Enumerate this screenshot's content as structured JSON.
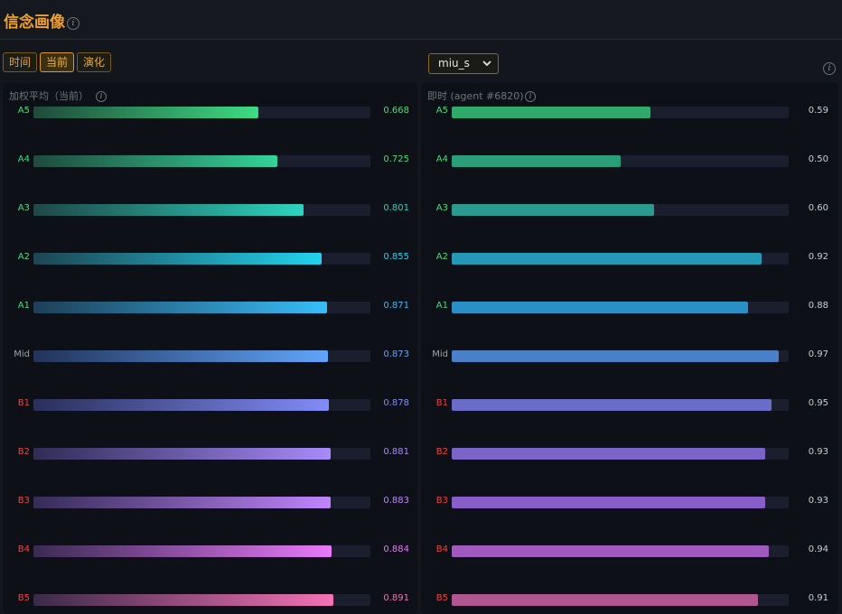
{
  "header": {
    "title": "信念画像"
  },
  "tabs": [
    {
      "label": "时间",
      "active": false
    },
    {
      "label": "当前",
      "active": true
    },
    {
      "label": "演化",
      "active": false
    }
  ],
  "agent_select": {
    "value": "miu_s"
  },
  "left_panel": {
    "title": "加权平均（当前）",
    "rows": [
      {
        "label": "A5",
        "value": 0.668,
        "value_text": "0.668",
        "label_color": "#4ade80",
        "value_color": "#4ade80",
        "grad": [
          "#1f4a3a",
          "#3ddc84"
        ]
      },
      {
        "label": "A4",
        "value": 0.725,
        "value_text": "0.725",
        "label_color": "#4ade80",
        "value_color": "#4ade80",
        "grad": [
          "#1f4a3e",
          "#34d399"
        ]
      },
      {
        "label": "A3",
        "value": 0.801,
        "value_text": "0.801",
        "label_color": "#4ade80",
        "value_color": "#2dd4bf",
        "grad": [
          "#1e4746",
          "#2dd4bf"
        ]
      },
      {
        "label": "A2",
        "value": 0.855,
        "value_text": "0.855",
        "label_color": "#4ade80",
        "value_color": "#22d3ee",
        "grad": [
          "#1e4552",
          "#22d3ee"
        ]
      },
      {
        "label": "A1",
        "value": 0.871,
        "value_text": "0.871",
        "label_color": "#4ade80",
        "value_color": "#38bdf8",
        "grad": [
          "#1e3f58",
          "#38bdf8"
        ]
      },
      {
        "label": "Mid",
        "value": 0.873,
        "value_text": "0.873",
        "label_color": "#9ca3af",
        "value_color": "#60a5fa",
        "grad": [
          "#22335a",
          "#60a5fa"
        ]
      },
      {
        "label": "B1",
        "value": 0.878,
        "value_text": "0.878",
        "label_color": "#ef4444",
        "value_color": "#818cf8",
        "grad": [
          "#2a2f58",
          "#818cf8"
        ]
      },
      {
        "label": "B2",
        "value": 0.881,
        "value_text": "0.881",
        "label_color": "#ef4444",
        "value_color": "#a78bfa",
        "grad": [
          "#302c55",
          "#a78bfa"
        ]
      },
      {
        "label": "B3",
        "value": 0.883,
        "value_text": "0.883",
        "label_color": "#ef4444",
        "value_color": "#c084fc",
        "grad": [
          "#352c55",
          "#c084fc"
        ]
      },
      {
        "label": "B4",
        "value": 0.884,
        "value_text": "0.884",
        "label_color": "#ef4444",
        "value_color": "#e879f9",
        "grad": [
          "#3a2a52",
          "#e879f9"
        ]
      },
      {
        "label": "B5",
        "value": 0.891,
        "value_text": "0.891",
        "label_color": "#ef4444",
        "value_color": "#f472b6",
        "grad": [
          "#3a2a48",
          "#f472b6"
        ]
      }
    ]
  },
  "right_panel": {
    "title": "即时 (agent #6820)",
    "rows": [
      {
        "label": "A5",
        "value": 0.59,
        "value_text": "0.59",
        "label_color": "#4ade80",
        "value_color": "#c9d1d9",
        "color": "#2faa6a"
      },
      {
        "label": "A4",
        "value": 0.5,
        "value_text": "0.50",
        "label_color": "#4ade80",
        "value_color": "#c9d1d9",
        "color": "#2a9e78"
      },
      {
        "label": "A3",
        "value": 0.6,
        "value_text": "0.60",
        "label_color": "#4ade80",
        "value_color": "#c9d1d9",
        "color": "#2a9a8e"
      },
      {
        "label": "A2",
        "value": 0.92,
        "value_text": "0.92",
        "label_color": "#4ade80",
        "value_color": "#c9d1d9",
        "color": "#2498b4"
      },
      {
        "label": "A1",
        "value": 0.88,
        "value_text": "0.88",
        "label_color": "#4ade80",
        "value_color": "#c9d1d9",
        "color": "#2a8fc4"
      },
      {
        "label": "Mid",
        "value": 0.97,
        "value_text": "0.97",
        "label_color": "#9ca3af",
        "value_color": "#c9d1d9",
        "color": "#4a80c8"
      },
      {
        "label": "B1",
        "value": 0.95,
        "value_text": "0.95",
        "label_color": "#ef4444",
        "value_color": "#c9d1d9",
        "color": "#6a6cc8"
      },
      {
        "label": "B2",
        "value": 0.93,
        "value_text": "0.93",
        "label_color": "#ef4444",
        "value_color": "#c9d1d9",
        "color": "#7b64c8"
      },
      {
        "label": "B3",
        "value": 0.93,
        "value_text": "0.93",
        "label_color": "#ef4444",
        "value_color": "#c9d1d9",
        "color": "#8a5ec8"
      },
      {
        "label": "B4",
        "value": 0.94,
        "value_text": "0.94",
        "label_color": "#ef4444",
        "value_color": "#c9d1d9",
        "color": "#a05abe"
      },
      {
        "label": "B5",
        "value": 0.91,
        "value_text": "0.91",
        "label_color": "#ef4444",
        "value_color": "#c9d1d9",
        "color": "#b05690"
      }
    ]
  },
  "icons": {
    "info": "info-icon",
    "dropdown": "chevron-down-icon"
  }
}
